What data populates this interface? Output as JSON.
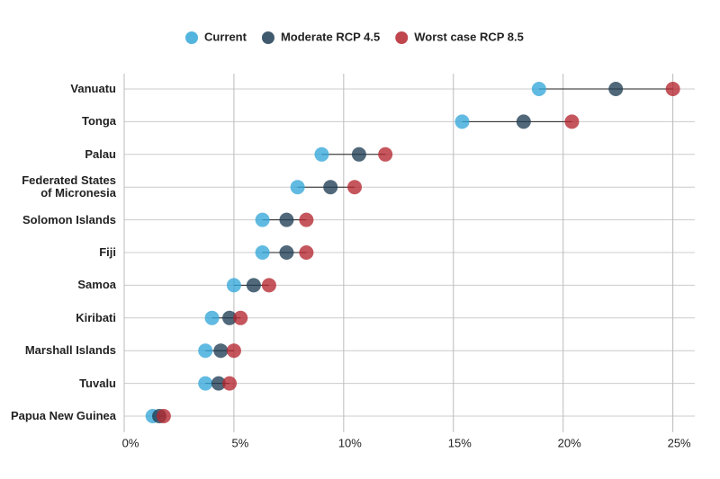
{
  "chart_data": {
    "type": "dumbbell",
    "categories": [
      "Vanuatu",
      "Tonga",
      "Palau",
      "Federated States\nof Micronesia",
      "Solomon Islands",
      "Fiji",
      "Samoa",
      "Kiribati",
      "Marshall Islands",
      "Tuvalu",
      "Papua New Guinea"
    ],
    "series": [
      {
        "name": "Current",
        "color": "#35a7d8",
        "values": [
          18.9,
          15.4,
          9.0,
          7.9,
          6.3,
          6.3,
          5.0,
          4.0,
          3.7,
          3.7,
          1.3
        ]
      },
      {
        "name": "Moderate RCP 4.5",
        "color": "#1f3d53",
        "values": [
          22.4,
          18.2,
          10.7,
          9.4,
          7.4,
          7.4,
          5.9,
          4.8,
          4.4,
          4.3,
          1.6
        ]
      },
      {
        "name": "Worst case RCP 8.5",
        "color": "#b5262f",
        "values": [
          25.0,
          20.4,
          11.9,
          10.5,
          8.3,
          8.3,
          6.6,
          5.3,
          5.0,
          4.8,
          1.8
        ]
      }
    ],
    "xlim": [
      0,
      26
    ],
    "xticks": [
      {
        "value": 0,
        "label": "0%"
      },
      {
        "value": 5,
        "label": "5%"
      },
      {
        "value": 10,
        "label": "10%"
      },
      {
        "value": 15,
        "label": "15%"
      },
      {
        "value": 20,
        "label": "20%"
      },
      {
        "value": 25,
        "label": "25%"
      }
    ],
    "grid": true,
    "legend": "top"
  }
}
